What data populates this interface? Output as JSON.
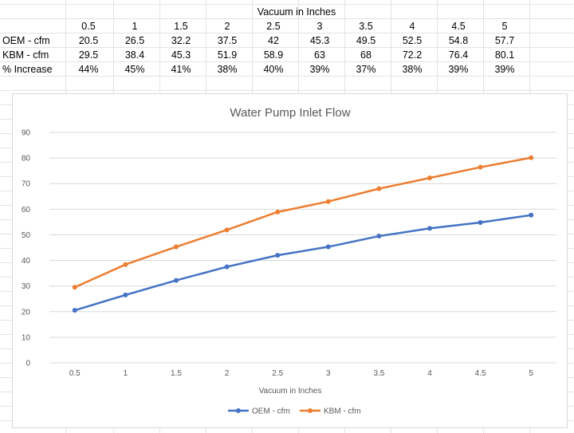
{
  "table": {
    "header_title": "Vacuum in Inches",
    "columns": [
      "0.5",
      "1",
      "1.5",
      "2",
      "2.5",
      "3",
      "3.5",
      "4",
      "4.5",
      "5"
    ],
    "rows": [
      {
        "label": "OEM - cfm",
        "values": [
          "20.5",
          "26.5",
          "32.2",
          "37.5",
          "42",
          "45.3",
          "49.5",
          "52.5",
          "54.8",
          "57.7"
        ]
      },
      {
        "label": "KBM - cfm",
        "values": [
          "29.5",
          "38.4",
          "45.3",
          "51.9",
          "58.9",
          "63",
          "68",
          "72.2",
          "76.4",
          "80.1"
        ]
      },
      {
        "label": "% Increase",
        "values": [
          "44%",
          "45%",
          "41%",
          "38%",
          "40%",
          "39%",
          "37%",
          "38%",
          "39%",
          "39%"
        ]
      }
    ]
  },
  "chart_data": {
    "type": "line",
    "title": "Water Pump Inlet Flow",
    "xlabel": "Vacuum in Inches",
    "ylabel": "",
    "categories": [
      "0.5",
      "1",
      "1.5",
      "2",
      "2.5",
      "3",
      "3.5",
      "4",
      "4.5",
      "5"
    ],
    "ylim": [
      0,
      90
    ],
    "yticks": [
      "0",
      "10",
      "20",
      "30",
      "40",
      "50",
      "60",
      "70",
      "80",
      "90"
    ],
    "grid": true,
    "legend_position": "bottom",
    "series": [
      {
        "name": "OEM - cfm",
        "color": "#4472c4",
        "values": [
          20.5,
          26.5,
          32.2,
          37.5,
          42,
          45.3,
          49.5,
          52.5,
          54.8,
          57.7
        ]
      },
      {
        "name": "KBM - cfm",
        "color": "#ed7d31",
        "values": [
          29.5,
          38.4,
          45.3,
          51.9,
          58.9,
          63,
          68,
          72.2,
          76.4,
          80.1
        ]
      }
    ]
  }
}
